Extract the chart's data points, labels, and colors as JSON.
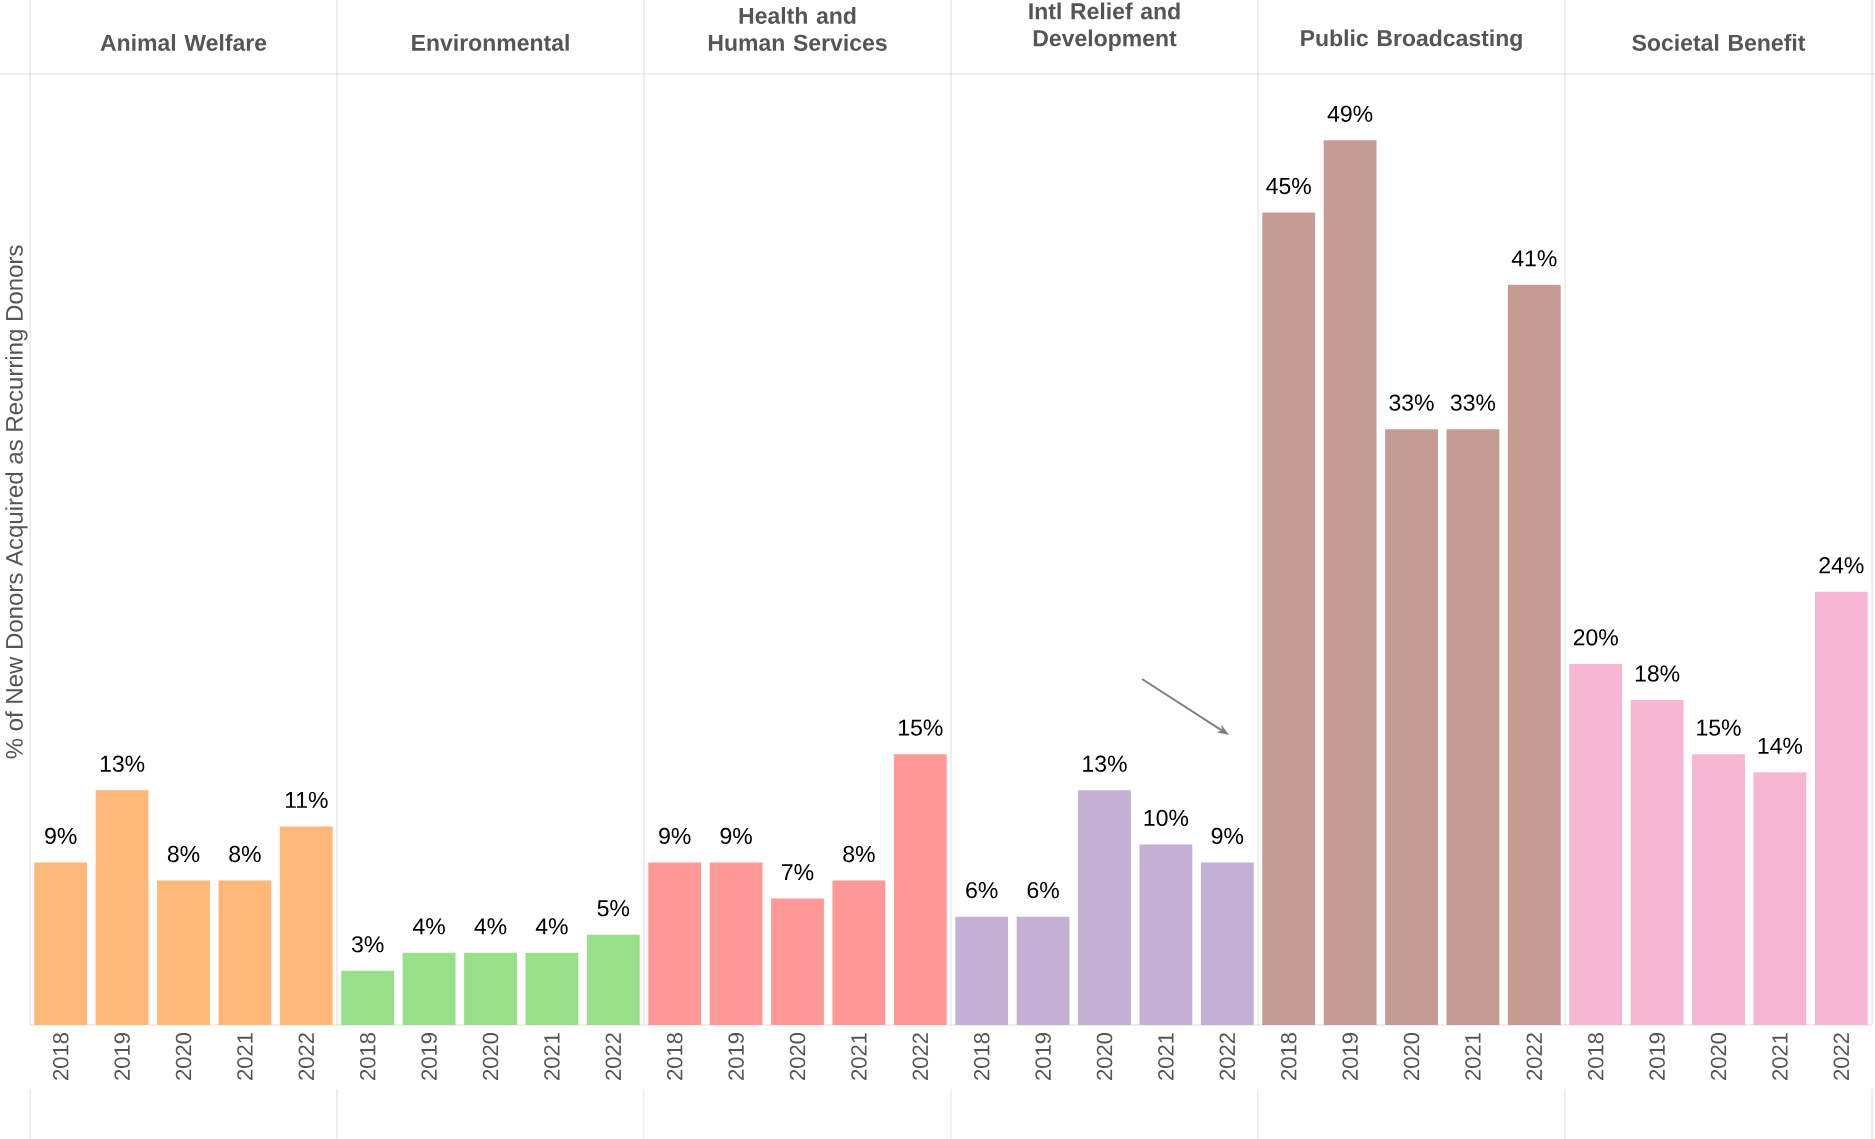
{
  "chart_data": [
    {
      "type": "bar",
      "title": "Animal Welfare",
      "ylabel": "% of New Donors Acquired as Recurring Donors",
      "categories": [
        "2018",
        "2019",
        "2020",
        "2021",
        "2022"
      ],
      "values": [
        9,
        13,
        8,
        8,
        11
      ],
      "value_labels": [
        "9%",
        "13%",
        "8%",
        "8%",
        "11%"
      ],
      "color": "#ffb878",
      "tick_labels": "x"
    },
    {
      "type": "bar",
      "title": "Environmental",
      "categories": [
        "2018",
        "2019",
        "2020",
        "2021",
        "2022"
      ],
      "values": [
        3,
        4,
        4,
        4,
        5
      ],
      "value_labels": [
        "3%",
        "4%",
        "4%",
        "4%",
        "5%"
      ],
      "color": "#98df8a",
      "tick_labels": "x"
    },
    {
      "type": "bar",
      "title": "Health and Human Services",
      "categories": [
        "2018",
        "2019",
        "2020",
        "2021",
        "2022"
      ],
      "values": [
        9,
        9,
        7,
        8,
        15
      ],
      "value_labels": [
        "9%",
        "9%",
        "7%",
        "8%",
        "15%"
      ],
      "color": "#ff9896",
      "tick_labels": "x"
    },
    {
      "type": "bar",
      "title": "Intl Relief and Development",
      "categories": [
        "2018",
        "2019",
        "2020",
        "2021",
        "2022"
      ],
      "values": [
        6,
        6,
        13,
        10,
        9
      ],
      "value_labels": [
        "6%",
        "6%",
        "13%",
        "10%",
        "9%"
      ],
      "color": "#c5b0d5",
      "tick_labels": "x"
    },
    {
      "type": "bar",
      "title": "Public Broadcasting",
      "categories": [
        "2018",
        "2019",
        "2020",
        "2021",
        "2022"
      ],
      "values": [
        45,
        49,
        33,
        33,
        41
      ],
      "value_labels": [
        "45%",
        "49%",
        "33%",
        "33%",
        "41%"
      ],
      "color": "#c49c94",
      "tick_labels": "x"
    },
    {
      "type": "bar",
      "title": "Societal Benefit",
      "categories": [
        "2018",
        "2019",
        "2020",
        "2021",
        "2022"
      ],
      "values": [
        20,
        18,
        15,
        14,
        24
      ],
      "value_labels": [
        "20%",
        "18%",
        "15%",
        "14%",
        "24%"
      ],
      "color": "#f7b6d2",
      "tick_labels": "x"
    }
  ]
}
